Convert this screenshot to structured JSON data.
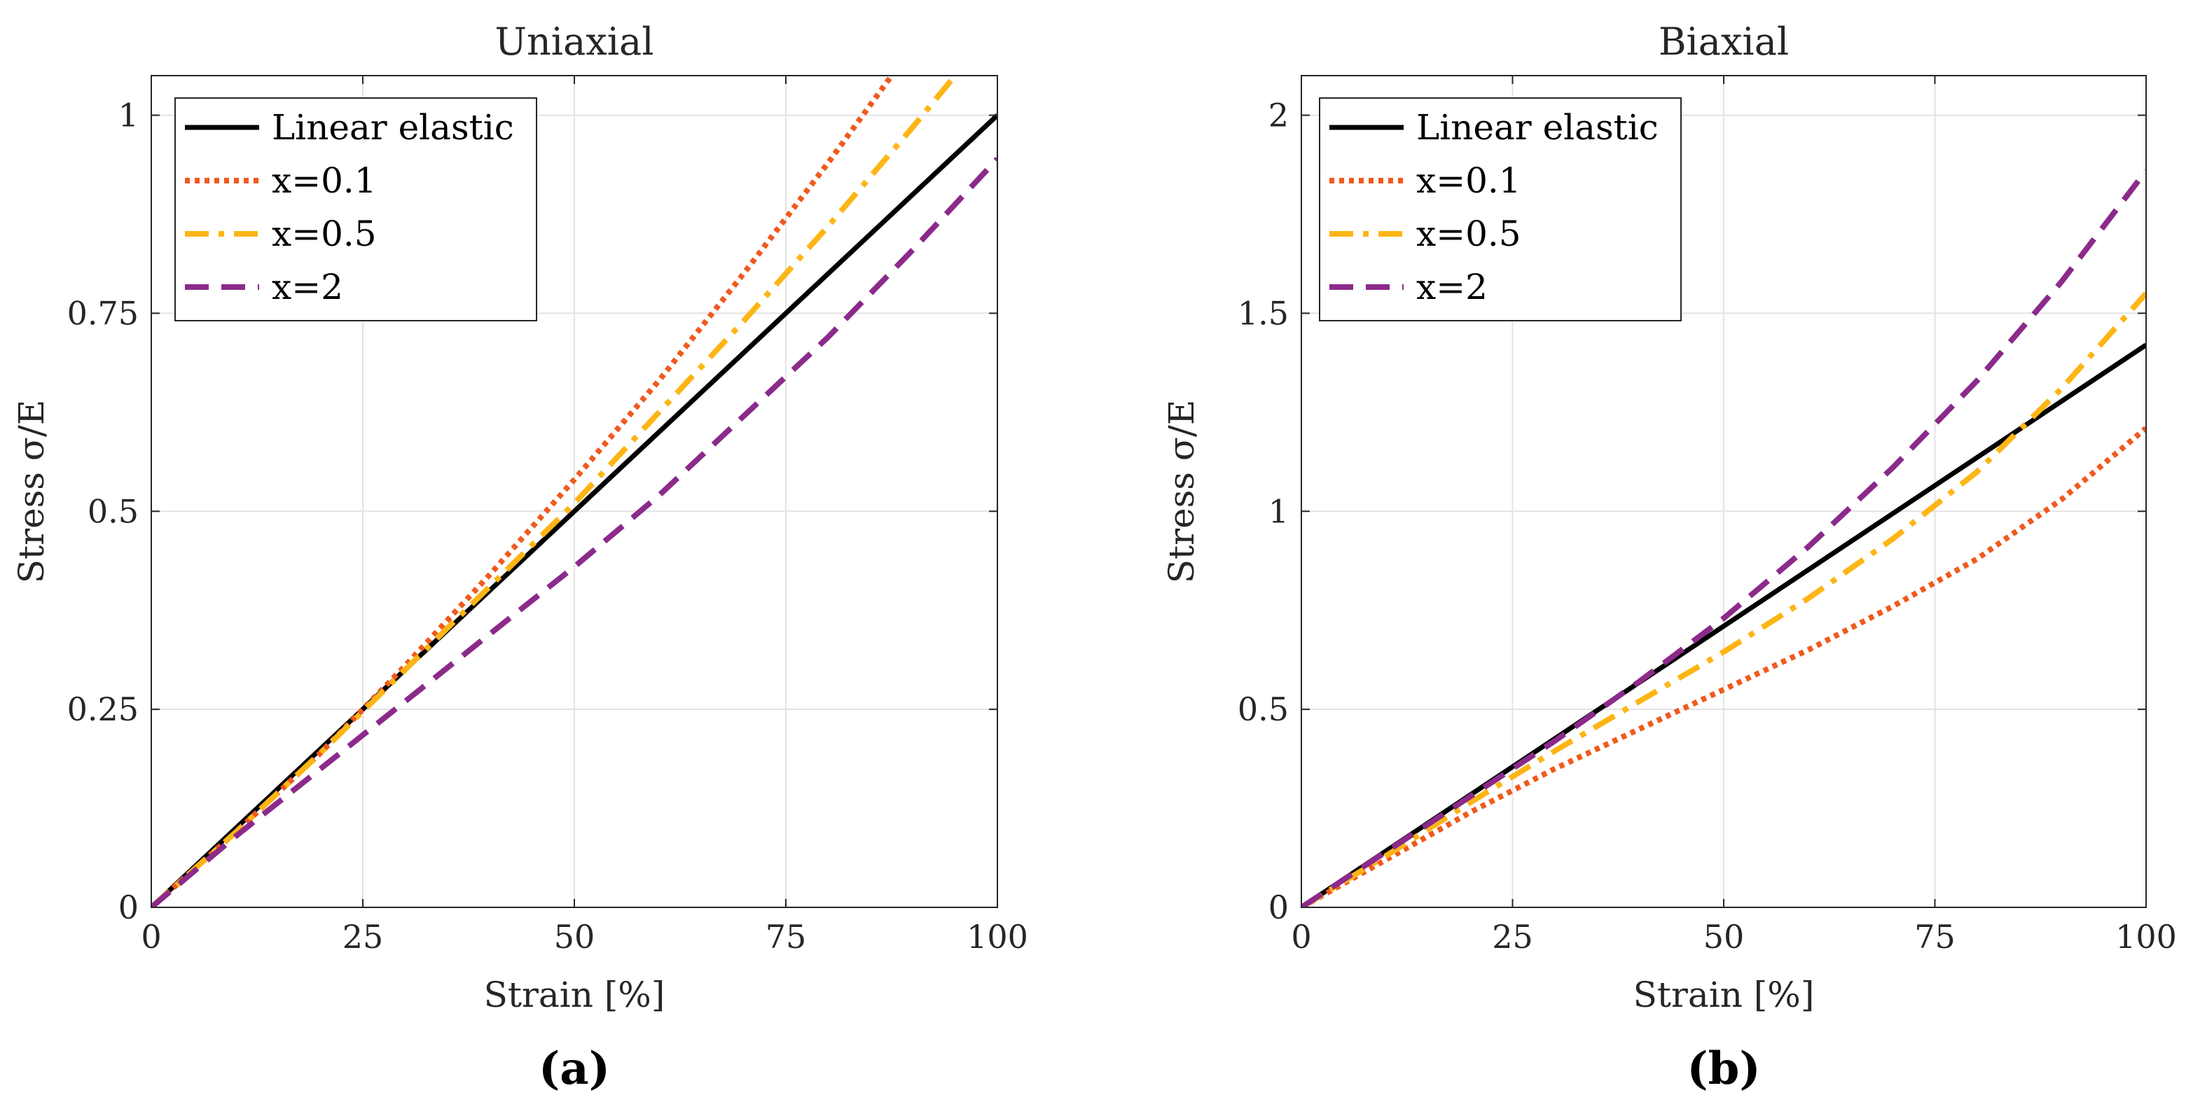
{
  "chart_data": [
    {
      "type": "line",
      "panel_label": "(a)",
      "title": "Uniaxial",
      "xlabel": "Strain [%]",
      "ylabel": "Stress σ/E",
      "xlim": [
        0,
        100
      ],
      "ylim": [
        0,
        1.05
      ],
      "xticks": [
        0,
        25,
        50,
        75,
        100
      ],
      "yticks": [
        0,
        0.25,
        0.5,
        0.75,
        1
      ],
      "xtick_labels": [
        "0",
        "25",
        "50",
        "75",
        "100"
      ],
      "ytick_labels": [
        "0",
        "0.25",
        "0.5",
        "0.75",
        "1"
      ],
      "grid": true,
      "legend_position": "top-left",
      "series": [
        {
          "name": "Linear elastic",
          "color": "#000000",
          "style": "solid",
          "x": [
            0,
            25,
            50,
            75,
            100
          ],
          "y": [
            0,
            0.25,
            0.5,
            0.75,
            1.0
          ]
        },
        {
          "name": "x=0.1",
          "color": "#F05A1E",
          "style": "dotted",
          "x": [
            0,
            10,
            20,
            30,
            40,
            50,
            60,
            70,
            80,
            87.5
          ],
          "y": [
            0,
            0.095,
            0.195,
            0.305,
            0.42,
            0.54,
            0.665,
            0.8,
            0.94,
            1.05
          ]
        },
        {
          "name": "x=0.5",
          "color": "#FDB515",
          "style": "dashdot",
          "x": [
            0,
            10,
            20,
            30,
            40,
            50,
            60,
            70,
            80,
            90,
            95
          ],
          "y": [
            0,
            0.095,
            0.195,
            0.3,
            0.405,
            0.51,
            0.625,
            0.74,
            0.86,
            0.985,
            1.05
          ]
        },
        {
          "name": "x=2",
          "color": "#8B2A8B",
          "style": "dashed",
          "x": [
            0,
            10,
            20,
            30,
            40,
            50,
            60,
            70,
            80,
            90,
            100
          ],
          "y": [
            0,
            0.09,
            0.175,
            0.26,
            0.345,
            0.43,
            0.52,
            0.62,
            0.72,
            0.83,
            0.945
          ]
        }
      ]
    },
    {
      "type": "line",
      "panel_label": "(b)",
      "title": "Biaxial",
      "xlabel": "Strain [%]",
      "ylabel": "Stress σ/E",
      "xlim": [
        0,
        100
      ],
      "ylim": [
        0,
        2.1
      ],
      "xticks": [
        0,
        25,
        50,
        75,
        100
      ],
      "yticks": [
        0,
        0.5,
        1,
        1.5,
        2
      ],
      "xtick_labels": [
        "0",
        "25",
        "50",
        "75",
        "100"
      ],
      "ytick_labels": [
        "0",
        "0.5",
        "1",
        "1.5",
        "2"
      ],
      "grid": true,
      "legend_position": "top-left",
      "series": [
        {
          "name": "Linear elastic",
          "color": "#000000",
          "style": "solid",
          "x": [
            0,
            25,
            50,
            75,
            100
          ],
          "y": [
            0,
            0.355,
            0.71,
            1.065,
            1.42
          ]
        },
        {
          "name": "x=0.1",
          "color": "#F05A1E",
          "style": "dotted",
          "x": [
            0,
            10,
            20,
            30,
            40,
            50,
            60,
            70,
            80,
            90,
            100
          ],
          "y": [
            0,
            0.12,
            0.24,
            0.35,
            0.45,
            0.55,
            0.65,
            0.76,
            0.88,
            1.03,
            1.21
          ]
        },
        {
          "name": "x=0.5",
          "color": "#FDB515",
          "style": "dashdot",
          "x": [
            0,
            10,
            20,
            30,
            40,
            50,
            60,
            70,
            80,
            90,
            100
          ],
          "y": [
            0,
            0.13,
            0.265,
            0.395,
            0.52,
            0.645,
            0.78,
            0.93,
            1.1,
            1.31,
            1.55
          ]
        },
        {
          "name": "x=2",
          "color": "#8B2A8B",
          "style": "dashed",
          "x": [
            0,
            10,
            20,
            30,
            40,
            50,
            60,
            70,
            80,
            90,
            100
          ],
          "y": [
            0,
            0.14,
            0.28,
            0.42,
            0.57,
            0.73,
            0.91,
            1.11,
            1.33,
            1.58,
            1.86
          ]
        }
      ]
    }
  ]
}
